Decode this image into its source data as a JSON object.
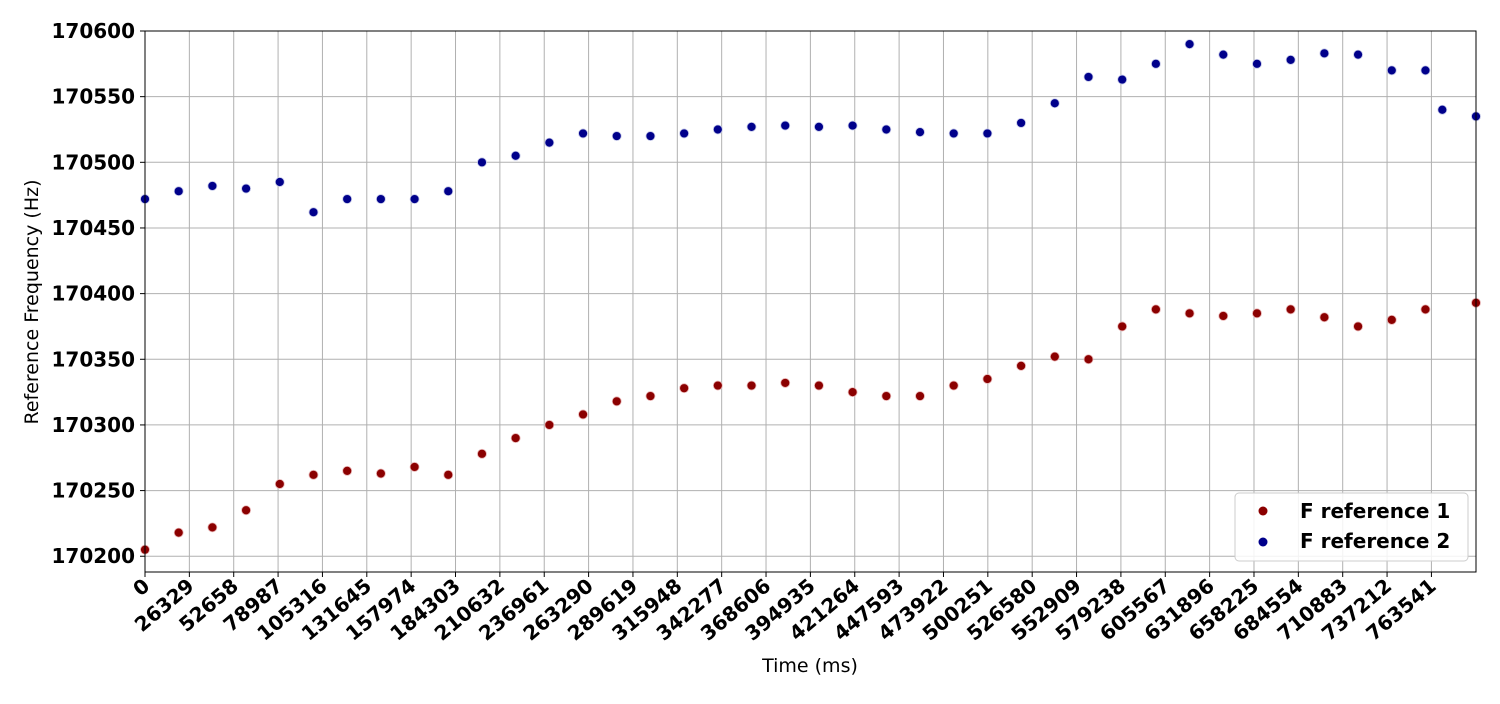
{
  "chart_data": {
    "type": "scatter",
    "xlabel": "Time (ms)",
    "ylabel": "Reference Frequency (Hz)",
    "xlim": [
      0,
      790000
    ],
    "ylim": [
      170188,
      170600
    ],
    "xticks": [
      0,
      26329,
      52658,
      78987,
      105316,
      131645,
      157974,
      184303,
      210632,
      236961,
      263290,
      289619,
      315948,
      342277,
      368606,
      394935,
      421264,
      447593,
      473922,
      500251,
      526580,
      552909,
      579238,
      605567,
      631896,
      658225,
      684554,
      710883,
      737212,
      763541
    ],
    "yticks": [
      170200,
      170250,
      170300,
      170350,
      170400,
      170450,
      170500,
      170550,
      170600
    ],
    "grid": true,
    "legend_position": "lower-right",
    "series": [
      {
        "name": "F reference 1",
        "color": "#8b0000",
        "x": [
          0,
          20000,
          40000,
          60000,
          80000,
          100000,
          120000,
          140000,
          160000,
          180000,
          200000,
          220000,
          240000,
          260000,
          280000,
          300000,
          320000,
          340000,
          360000,
          380000,
          400000,
          420000,
          440000,
          460000,
          480000,
          500000,
          520000,
          540000,
          560000,
          580000,
          600000,
          620000,
          640000,
          660000,
          680000,
          700000,
          720000,
          740000,
          760000,
          790000
        ],
        "y": [
          170205,
          170218,
          170222,
          170235,
          170255,
          170262,
          170265,
          170263,
          170268,
          170262,
          170278,
          170290,
          170300,
          170308,
          170318,
          170322,
          170328,
          170330,
          170330,
          170332,
          170330,
          170325,
          170322,
          170322,
          170330,
          170335,
          170345,
          170352,
          170350,
          170375,
          170388,
          170385,
          170383,
          170385,
          170388,
          170382,
          170375,
          170380,
          170388,
          170393
        ]
      },
      {
        "name": "F reference 2",
        "color": "#00008b",
        "x": [
          0,
          20000,
          40000,
          60000,
          80000,
          100000,
          120000,
          140000,
          160000,
          180000,
          200000,
          220000,
          240000,
          260000,
          280000,
          300000,
          320000,
          340000,
          360000,
          380000,
          400000,
          420000,
          440000,
          460000,
          480000,
          500000,
          520000,
          540000,
          560000,
          580000,
          600000,
          620000,
          640000,
          660000,
          680000,
          700000,
          720000,
          740000,
          760000,
          770000,
          790000
        ],
        "y": [
          170472,
          170478,
          170482,
          170480,
          170485,
          170462,
          170472,
          170472,
          170472,
          170478,
          170500,
          170505,
          170515,
          170522,
          170520,
          170520,
          170522,
          170525,
          170527,
          170528,
          170527,
          170528,
          170525,
          170523,
          170522,
          170522,
          170530,
          170545,
          170565,
          170563,
          170575,
          170590,
          170582,
          170575,
          170578,
          170583,
          170582,
          170570,
          170570,
          170540,
          170535
        ]
      }
    ]
  }
}
